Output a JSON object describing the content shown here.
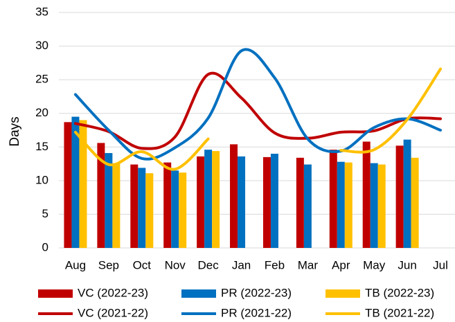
{
  "chart_data": {
    "type": "combo",
    "ylabel": "Days",
    "categories": [
      "Aug",
      "Sep",
      "Oct",
      "Nov",
      "Dec",
      "Jan",
      "Feb",
      "Mar",
      "Apr",
      "May",
      "Jun",
      "Jul"
    ],
    "ylim": [
      0,
      35
    ],
    "yticks": [
      0,
      5,
      10,
      15,
      20,
      25,
      30,
      35
    ],
    "grid": true,
    "legend": "bottom",
    "series": [
      {
        "name": "VC (2022-23)",
        "type": "bar",
        "color": "#c00000",
        "values": [
          18.7,
          15.6,
          12.4,
          12.7,
          13.6,
          15.4,
          13.5,
          13.4,
          14.6,
          15.8,
          15.2,
          null
        ]
      },
      {
        "name": "PR (2022-23)",
        "type": "bar",
        "color": "#0070c0",
        "values": [
          19.5,
          14.1,
          11.9,
          11.5,
          14.6,
          13.6,
          14.0,
          12.4,
          12.8,
          12.6,
          16.1,
          null
        ]
      },
      {
        "name": "TB (2022-23)",
        "type": "bar",
        "color": "#ffc000",
        "values": [
          19.0,
          12.6,
          11.1,
          11.2,
          14.4,
          null,
          null,
          null,
          12.7,
          12.4,
          13.4,
          null
        ]
      },
      {
        "name": "VC (2021-22)",
        "type": "line",
        "color": "#c00000",
        "values": [
          18.5,
          17.3,
          14.8,
          16.5,
          25.8,
          22.3,
          17.1,
          16.3,
          17.2,
          17.4,
          19.2,
          19.2
        ]
      },
      {
        "name": "PR (2021-22)",
        "type": "line",
        "color": "#0070c0",
        "values": [
          22.8,
          17.5,
          13.3,
          14.9,
          19.3,
          29.3,
          25.3,
          16.2,
          14.4,
          17.9,
          19.2,
          17.5
        ]
      },
      {
        "name": "TB (2021-22)",
        "type": "line",
        "color": "#ffc000",
        "values": [
          17.2,
          12.4,
          14.3,
          11.7,
          16.2,
          null,
          null,
          null,
          14.5,
          14.6,
          19.1,
          26.6
        ]
      }
    ]
  }
}
